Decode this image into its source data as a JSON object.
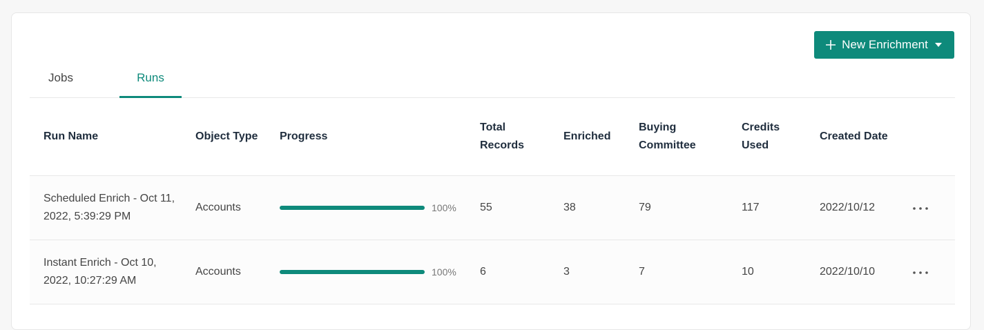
{
  "header": {
    "button": "New Enrichment"
  },
  "tabs": [
    "Jobs",
    "Runs"
  ],
  "active_tab": 1,
  "table": {
    "columns": [
      "Run Name",
      "Object Type",
      "Progress",
      "Total Records",
      "Enriched",
      "Buying Committee",
      "Credits Used",
      "Created Date"
    ],
    "rows": [
      {
        "run_name": "Scheduled Enrich - Oct 11, 2022, 5:39:29 PM",
        "object_type": "Accounts",
        "progress": {
          "value": 100,
          "label": "100%"
        },
        "total_records": 55,
        "enriched": 38,
        "buying_committee": 79,
        "credits_used": 117,
        "created_date": "2022/10/12"
      },
      {
        "run_name": "Instant Enrich - Oct 10, 2022, 10:27:29 AM",
        "object_type": "Accounts",
        "progress": {
          "value": 100,
          "label": "100%"
        },
        "total_records": 6,
        "enriched": 3,
        "buying_committee": 7,
        "credits_used": 10,
        "created_date": "2022/10/10"
      }
    ]
  }
}
